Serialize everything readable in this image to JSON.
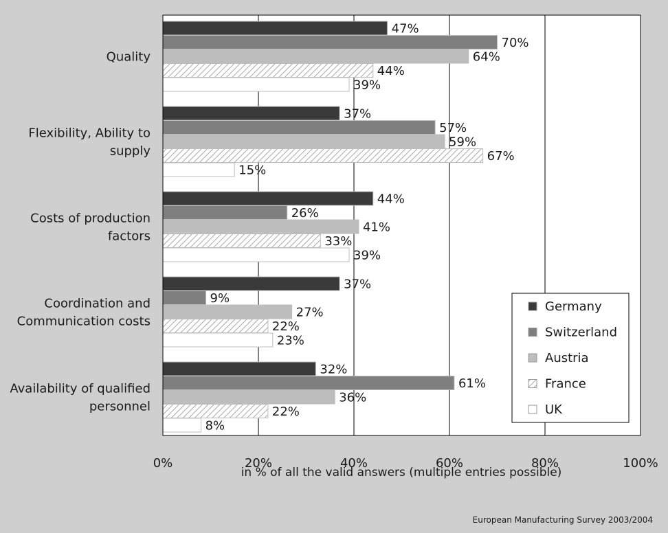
{
  "chart_data": {
    "type": "bar",
    "orientation": "horizontal",
    "categories": [
      [
        "Quality"
      ],
      [
        "Flexibility, Ability to",
        "supply"
      ],
      [
        "Costs of production",
        "factors"
      ],
      [
        "Coordination and",
        "Communication costs"
      ],
      [
        "Availability of qualified",
        "personnel"
      ]
    ],
    "series": [
      {
        "name": "Germany",
        "color": "#3a3a3a",
        "pattern": "solid",
        "values": [
          47,
          37,
          44,
          37,
          32
        ]
      },
      {
        "name": "Switzerland",
        "color": "#7f7f7f",
        "pattern": "solid",
        "values": [
          70,
          57,
          26,
          9,
          61
        ]
      },
      {
        "name": "Austria",
        "color": "#bdbdbd",
        "pattern": "solid",
        "values": [
          64,
          59,
          41,
          27,
          36
        ]
      },
      {
        "name": "France",
        "color": "#ffffff",
        "pattern": "hatch",
        "values": [
          44,
          67,
          33,
          22,
          22
        ]
      },
      {
        "name": "UK",
        "color": "#ffffff",
        "pattern": "solid",
        "values": [
          39,
          15,
          39,
          23,
          8
        ]
      }
    ],
    "value_suffix": "%",
    "xlim": [
      0,
      100
    ],
    "xticks": [
      0,
      20,
      40,
      60,
      80,
      100
    ],
    "xtick_labels": [
      "0%",
      "20%",
      "40%",
      "60%",
      "80%",
      "100%"
    ],
    "xlabel": "in % of all the valid answers (multiple entries possible)",
    "ylabel": "",
    "title": "",
    "grid": "vertical",
    "legend": "bottom-right",
    "source": "European Manufacturing Survey 2003/2004"
  }
}
